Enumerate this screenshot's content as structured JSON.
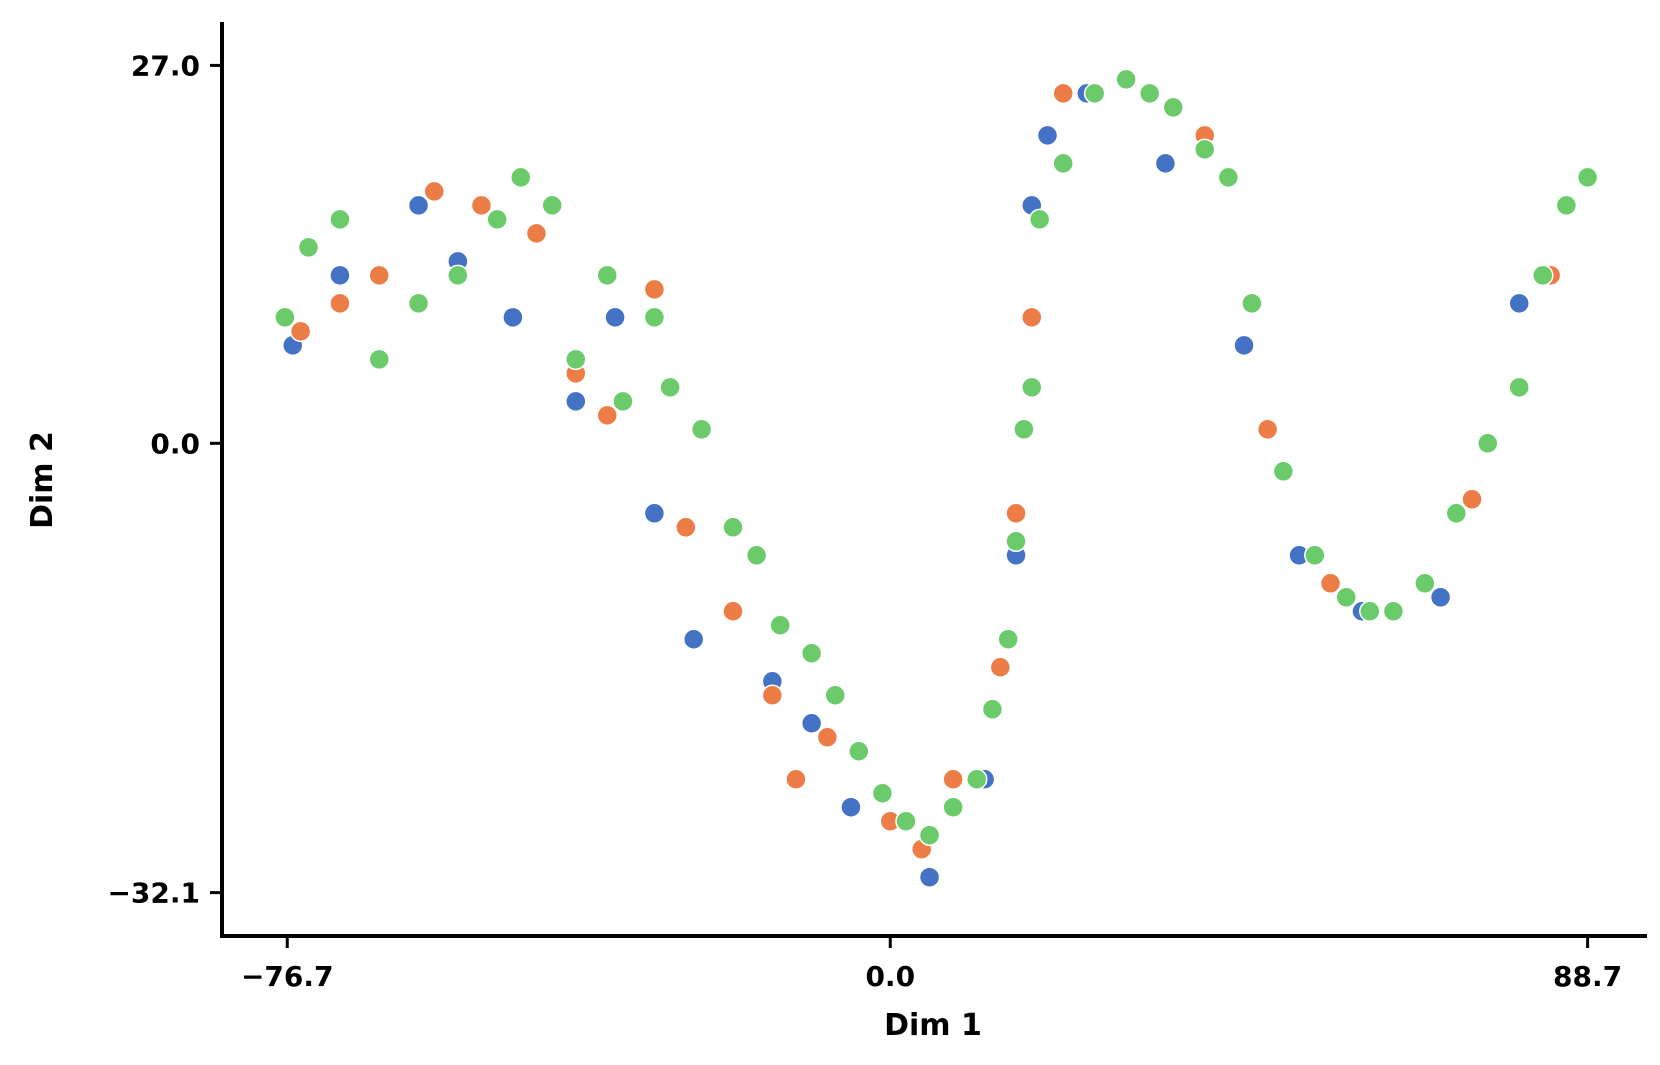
{
  "chart_data": {
    "type": "scatter",
    "xlabel": "Dim 1",
    "ylabel": "Dim 2",
    "xlim": [
      -85,
      96
    ],
    "ylim": [
      -35.2,
      30.1
    ],
    "x_ticks": [
      -76.7,
      0.0,
      88.7
    ],
    "x_tick_labels": [
      "−76.7",
      "0.0",
      "88.7"
    ],
    "y_ticks": [
      27.0,
      0.0,
      -32.1
    ],
    "y_tick_labels": [
      "27.0",
      "0.0",
      "−32.1"
    ],
    "grid": false,
    "legend": "none",
    "colors": [
      "#4472C4",
      "#ED7D47",
      "#6BCB6B"
    ],
    "series": [
      {
        "color": "#4472C4",
        "x": [
          -76,
          -70,
          -60,
          -55,
          -48,
          -40,
          -35,
          -30,
          -25,
          -20,
          -15,
          -10,
          -5,
          0,
          5,
          12,
          16,
          18,
          20,
          25,
          35,
          45,
          52,
          60,
          70,
          80
        ],
        "y": [
          7,
          12,
          17,
          13,
          9,
          3,
          9,
          -5,
          -14,
          -12,
          -17,
          -20,
          -26,
          -27,
          -31,
          -24,
          -8,
          17,
          22,
          25,
          20,
          7,
          -8,
          -12,
          -11,
          10
        ]
      },
      {
        "color": "#ED7D47",
        "x": [
          -75,
          -70,
          -65,
          -58,
          -52,
          -45,
          -40,
          -36,
          -30,
          -26,
          -20,
          -15,
          -12,
          -8,
          -4,
          0,
          4,
          8,
          14,
          16,
          18,
          22,
          30,
          40,
          48,
          56,
          64,
          74,
          84
        ],
        "y": [
          8,
          10,
          12,
          18,
          17,
          15,
          5,
          2,
          11,
          -6,
          -12,
          -18,
          -24,
          -21,
          -22,
          -27,
          -29,
          -24,
          -16,
          -5,
          9,
          25,
          26,
          22,
          1,
          -10,
          -12,
          -4,
          12
        ]
      },
      {
        "color": "#6BCB6B",
        "x": [
          -77,
          -74,
          -70,
          -65,
          -60,
          -55,
          -50,
          -47,
          -43,
          -40,
          -36,
          -34,
          -30,
          -28,
          -24,
          -20,
          -17,
          -14,
          -10,
          -7,
          -4,
          -1,
          2,
          5,
          8,
          11,
          13,
          15,
          16,
          17,
          18,
          19,
          22,
          26,
          30,
          33,
          36,
          40,
          43,
          46,
          50,
          54,
          58,
          61,
          64,
          68,
          72,
          76,
          80,
          83,
          86,
          88.7
        ],
        "y": [
          9,
          14,
          16,
          6,
          10,
          12,
          16,
          19,
          17,
          6,
          12,
          3,
          9,
          4,
          1,
          -6,
          -8,
          -13,
          -15,
          -18,
          -22,
          -25,
          -27,
          -28,
          -26,
          -24,
          -19,
          -14,
          -7,
          1,
          4,
          16,
          20,
          25,
          26,
          25,
          24,
          21,
          19,
          10,
          -2,
          -8,
          -11,
          -12,
          -12,
          -10,
          -5,
          0,
          4,
          12,
          17,
          19
        ]
      }
    ]
  }
}
